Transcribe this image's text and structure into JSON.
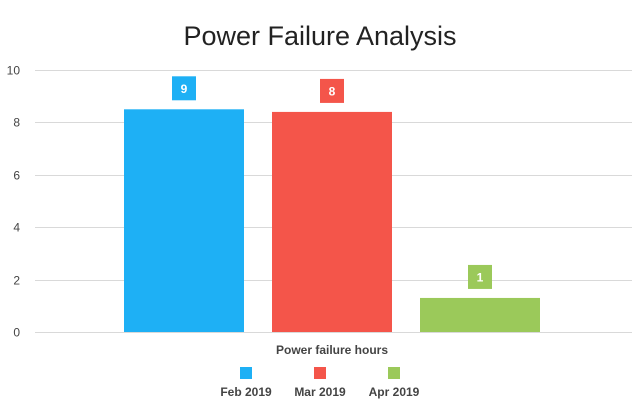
{
  "chart_data": {
    "type": "bar",
    "title": "Power Failure Analysis",
    "xlabel": "Power failure hours",
    "ylabel": "",
    "ylim": [
      0,
      10
    ],
    "yticks": [
      0,
      2,
      4,
      6,
      8,
      10
    ],
    "grid": true,
    "legend_position": "bottom",
    "series": [
      {
        "name": "Feb 2019",
        "value": 8.5,
        "label": "9",
        "color": "#1eb0f5"
      },
      {
        "name": "Mar 2019",
        "value": 8.4,
        "label": "8",
        "color": "#f4554a"
      },
      {
        "name": "Apr 2019",
        "value": 1.3,
        "label": "1",
        "color": "#9bc95a"
      }
    ]
  }
}
